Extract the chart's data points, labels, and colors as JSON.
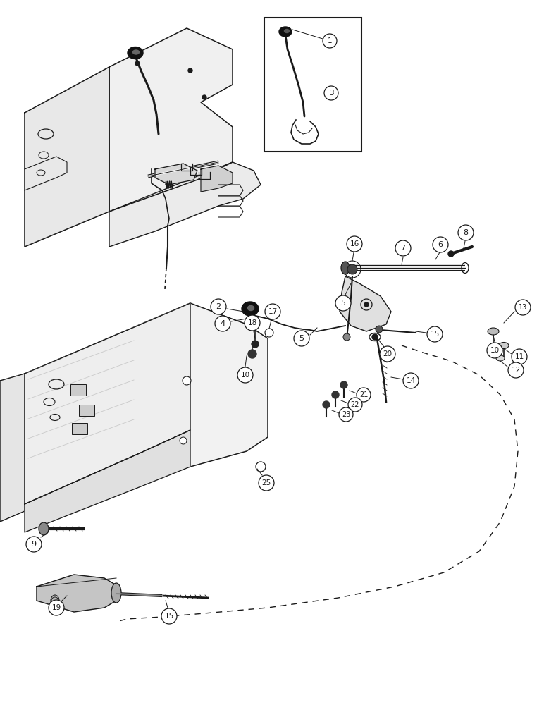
{
  "bg_color": "#ffffff",
  "line_color": "#1a1a1a",
  "figsize": [
    7.72,
    10.0
  ],
  "dpi": 100
}
